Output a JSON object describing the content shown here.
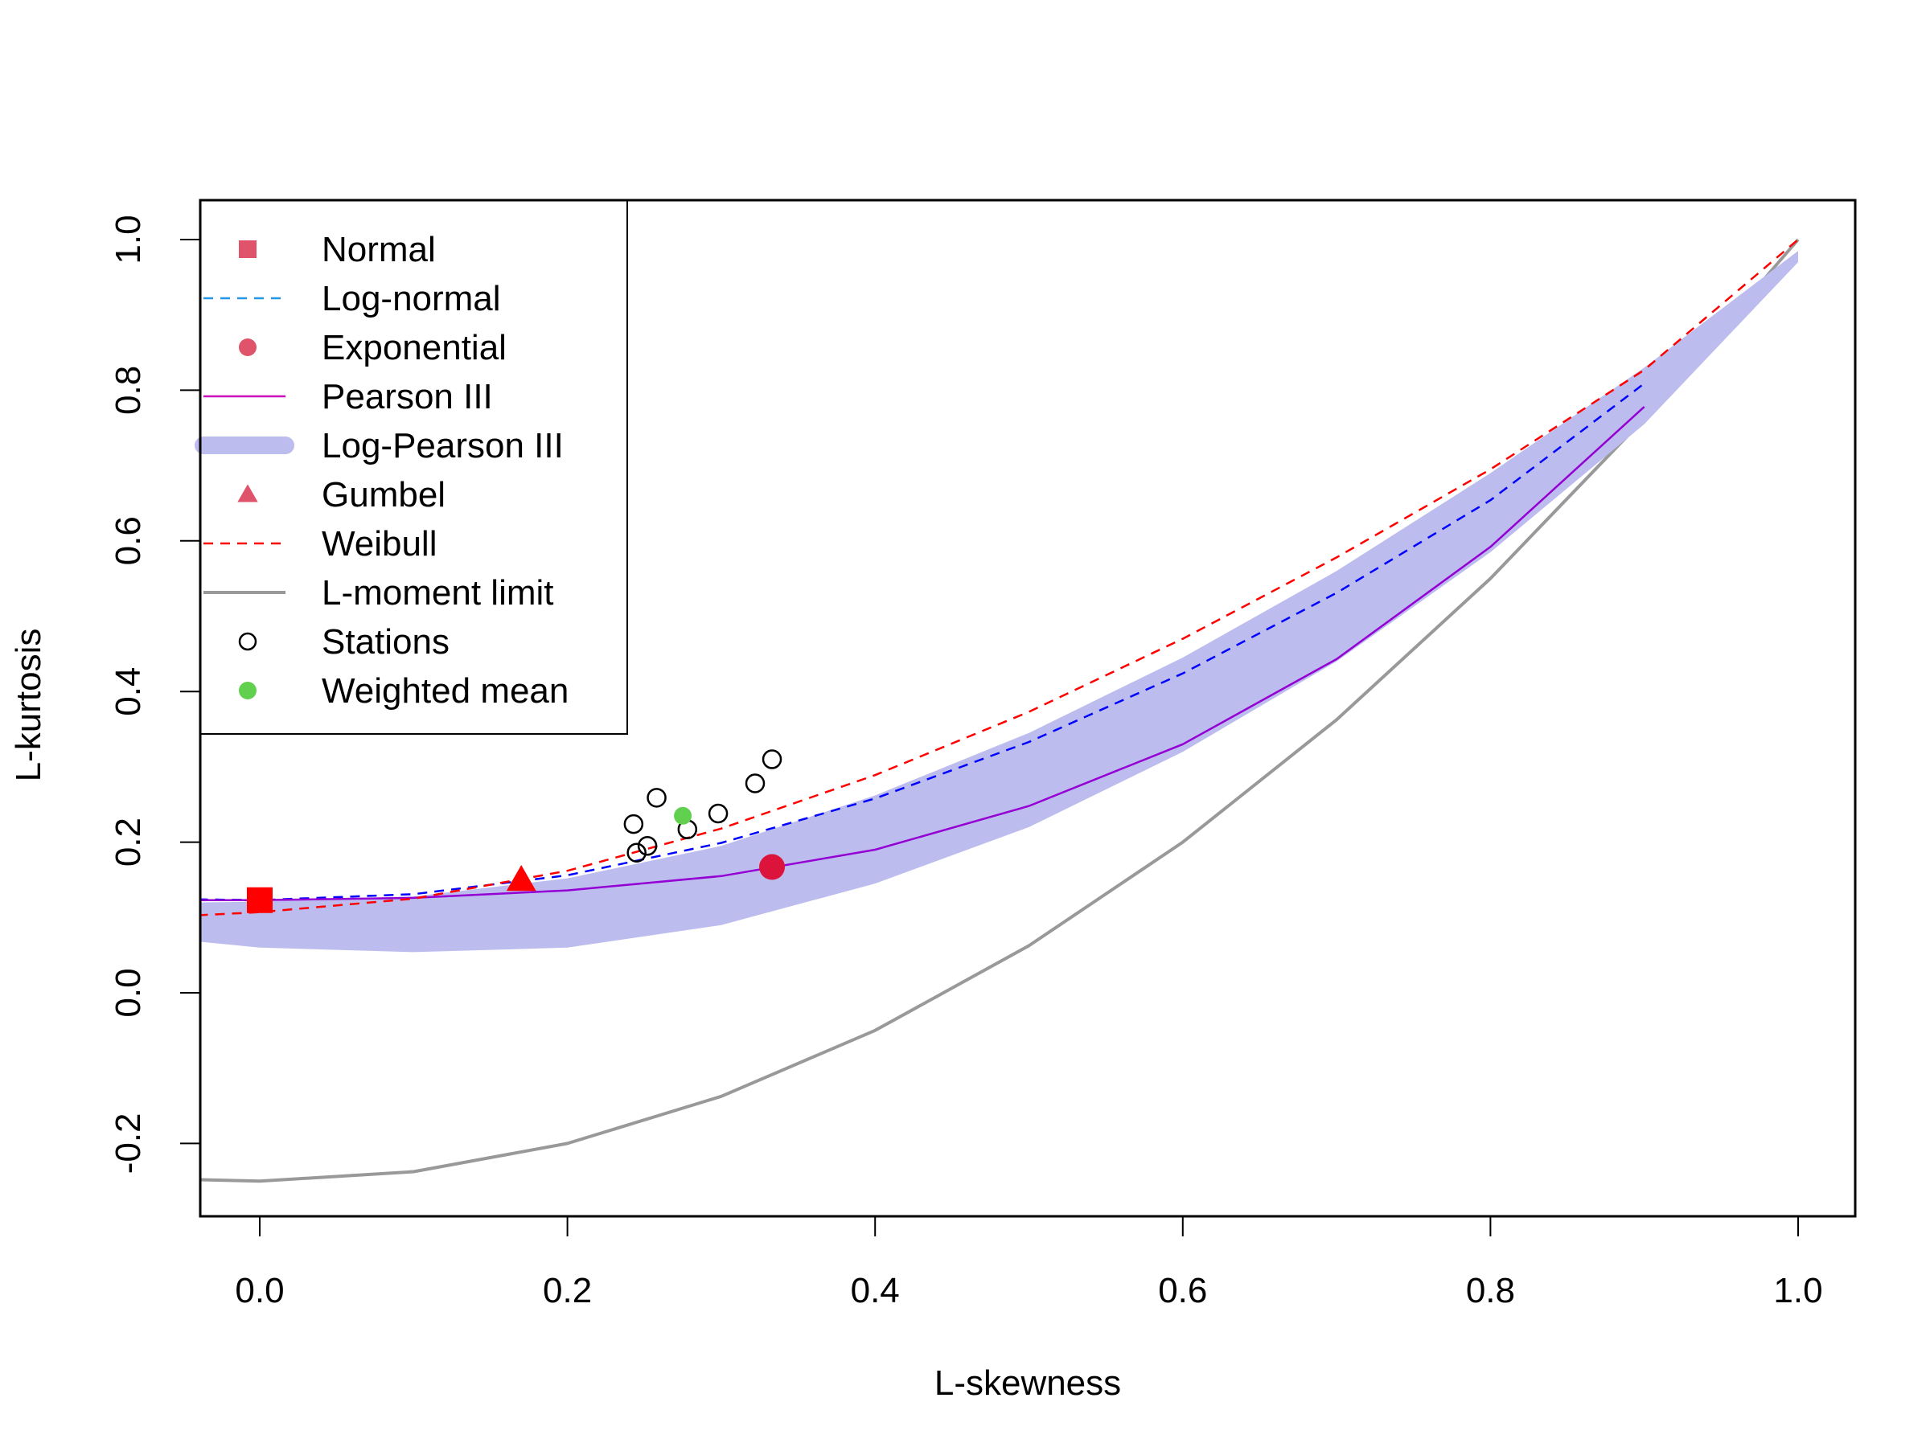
{
  "chart_data": {
    "type": "scatter",
    "title": "",
    "xlabel": "L-skewness",
    "ylabel": "L-kurtosis",
    "xlim": [
      -0.04,
      1.04
    ],
    "ylim": [
      -0.3,
      1.05
    ],
    "x_ticks": [
      "0.0",
      "0.2",
      "0.4",
      "0.6",
      "0.8",
      "1.0"
    ],
    "y_ticks": [
      "-0.2",
      "0.0",
      "0.2",
      "0.4",
      "0.6",
      "0.8",
      "1.0"
    ],
    "grid": false,
    "legend_position": "top-left",
    "legend": [
      {
        "label": "Normal",
        "symbol": "square",
        "color": "#df536b"
      },
      {
        "label": "Log-normal",
        "symbol": "dashed-line",
        "color": "#2297e6"
      },
      {
        "label": "Exponential",
        "symbol": "circle",
        "color": "#df536b"
      },
      {
        "label": "Pearson III",
        "symbol": "line",
        "color": "#cd0bbc"
      },
      {
        "label": "Log-Pearson III",
        "symbol": "band",
        "color": "#bcbcee"
      },
      {
        "label": "Gumbel",
        "symbol": "triangle",
        "color": "#df536b"
      },
      {
        "label": "Weibull",
        "symbol": "dashed-line",
        "color": "#ff0000"
      },
      {
        "label": "L-moment limit",
        "symbol": "line",
        "color": "#999999"
      },
      {
        "label": "Stations",
        "symbol": "open-circle",
        "color": "#000000"
      },
      {
        "label": "Weighted mean",
        "symbol": "circle",
        "color": "#61d04f"
      }
    ],
    "series": [
      {
        "name": "L-moment limit",
        "kind": "line",
        "color": "#999999",
        "style": "solid",
        "x": [
          -0.04,
          0.0,
          0.1,
          0.2,
          0.3,
          0.4,
          0.5,
          0.6,
          0.7,
          0.8,
          0.9,
          1.0
        ],
        "y": [
          -0.248,
          -0.25,
          -0.2375,
          -0.2,
          -0.1375,
          -0.05,
          0.0625,
          0.2,
          0.3625,
          0.55,
          0.7625,
          1.0
        ]
      },
      {
        "name": "Log-Pearson III",
        "kind": "band",
        "color": "#bcbcee",
        "x": [
          -0.04,
          0.0,
          0.1,
          0.2,
          0.3,
          0.4,
          0.5,
          0.6,
          0.7,
          0.8,
          0.9,
          1.0
        ],
        "y_upper": [
          0.12,
          0.121,
          0.128,
          0.152,
          0.195,
          0.262,
          0.345,
          0.445,
          0.56,
          0.69,
          0.83,
          0.985
        ],
        "y_lower": [
          0.068,
          0.06,
          0.054,
          0.06,
          0.09,
          0.145,
          0.22,
          0.32,
          0.44,
          0.585,
          0.755,
          0.97
        ]
      },
      {
        "name": "Log-normal",
        "kind": "line",
        "color": "#0000ff",
        "style": "dashed",
        "x": [
          -0.04,
          0.0,
          0.1,
          0.2,
          0.3,
          0.4,
          0.5,
          0.6,
          0.7,
          0.8,
          0.9
        ],
        "y": [
          0.124,
          0.123,
          0.131,
          0.156,
          0.199,
          0.258,
          0.333,
          0.424,
          0.531,
          0.654,
          0.809
        ]
      },
      {
        "name": "Pearson III",
        "kind": "line",
        "color": "#9400d3",
        "style": "solid",
        "x": [
          -0.04,
          0.0,
          0.1,
          0.2,
          0.3,
          0.4,
          0.5,
          0.6,
          0.7,
          0.8,
          0.9
        ],
        "y": [
          0.123,
          0.123,
          0.126,
          0.136,
          0.155,
          0.19,
          0.248,
          0.33,
          0.443,
          0.592,
          0.778
        ]
      },
      {
        "name": "Weibull",
        "kind": "line",
        "color": "#ff0000",
        "style": "dashed",
        "x": [
          -0.04,
          0.0,
          0.1,
          0.2,
          0.3,
          0.4,
          0.5,
          0.6,
          0.7,
          0.8,
          0.9,
          1.0
        ],
        "y": [
          0.103,
          0.107,
          0.125,
          0.162,
          0.218,
          0.289,
          0.373,
          0.47,
          0.578,
          0.695,
          0.827,
          1.0
        ]
      },
      {
        "name": "Stations",
        "kind": "points",
        "symbol": "open-circle",
        "color": "#000000",
        "x": [
          0.243,
          0.245,
          0.252,
          0.258,
          0.278,
          0.298,
          0.322,
          0.333
        ],
        "y": [
          0.224,
          0.186,
          0.195,
          0.259,
          0.217,
          0.238,
          0.278,
          0.31
        ]
      },
      {
        "name": "Weighted mean",
        "kind": "points",
        "symbol": "circle",
        "color": "#61d04f",
        "x": [
          0.275
        ],
        "y": [
          0.235
        ]
      },
      {
        "name": "Normal",
        "kind": "points",
        "symbol": "square",
        "color": "#ff0000",
        "x": [
          0.0
        ],
        "y": [
          0.123
        ]
      },
      {
        "name": "Gumbel",
        "kind": "points",
        "symbol": "triangle",
        "color": "#ff0000",
        "x": [
          0.17
        ],
        "y": [
          0.15
        ]
      },
      {
        "name": "Exponential",
        "kind": "points",
        "symbol": "circle",
        "color": "#dc143c",
        "x": [
          0.333
        ],
        "y": [
          0.167
        ]
      }
    ]
  }
}
